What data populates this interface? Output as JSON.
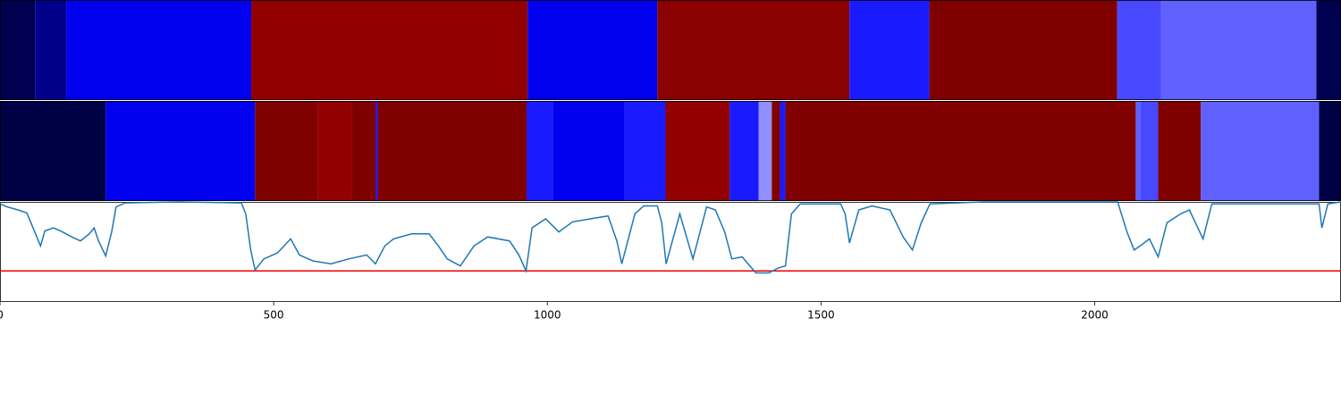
{
  "chart_data": {
    "type": "segmentation",
    "xlim": [
      0,
      2450
    ],
    "xticks": [
      0,
      500,
      1000,
      1500,
      2000
    ],
    "tracks": [
      {
        "segments": [
          {
            "start": 0,
            "end": 64,
            "color": "#000050"
          },
          {
            "start": 64,
            "end": 121,
            "color": "#00008b"
          },
          {
            "start": 121,
            "end": 459,
            "color": "#0000ee"
          },
          {
            "start": 459,
            "end": 964,
            "color": "#920000"
          },
          {
            "start": 964,
            "end": 1201,
            "color": "#0000ee"
          },
          {
            "start": 1201,
            "end": 1552,
            "color": "#8b0000"
          },
          {
            "start": 1552,
            "end": 1698,
            "color": "#1a1aff"
          },
          {
            "start": 1698,
            "end": 2041,
            "color": "#800000"
          },
          {
            "start": 2041,
            "end": 2121,
            "color": "#4848ff"
          },
          {
            "start": 2121,
            "end": 2405,
            "color": "#6060ff"
          },
          {
            "start": 2405,
            "end": 2450,
            "color": "#000050"
          }
        ]
      },
      {
        "segments": [
          {
            "start": 0,
            "end": 193,
            "color": "#000045"
          },
          {
            "start": 193,
            "end": 466,
            "color": "#0000ee"
          },
          {
            "start": 466,
            "end": 580,
            "color": "#800000"
          },
          {
            "start": 580,
            "end": 642,
            "color": "#930000"
          },
          {
            "start": 642,
            "end": 686,
            "color": "#800000"
          },
          {
            "start": 686,
            "end": 690,
            "color": "#1a1aff"
          },
          {
            "start": 690,
            "end": 962,
            "color": "#800000"
          },
          {
            "start": 962,
            "end": 1010,
            "color": "#1a1aff"
          },
          {
            "start": 1010,
            "end": 1141,
            "color": "#0000ee"
          },
          {
            "start": 1141,
            "end": 1216,
            "color": "#1a1aff"
          },
          {
            "start": 1216,
            "end": 1333,
            "color": "#930000"
          },
          {
            "start": 1333,
            "end": 1386,
            "color": "#1a1aff"
          },
          {
            "start": 1386,
            "end": 1410,
            "color": "#9090ff"
          },
          {
            "start": 1410,
            "end": 1425,
            "color": "#800000"
          },
          {
            "start": 1425,
            "end": 1435,
            "color": "#1a1aff"
          },
          {
            "start": 1435,
            "end": 2075,
            "color": "#800000"
          },
          {
            "start": 2075,
            "end": 2083,
            "color": "#6060ff"
          },
          {
            "start": 2083,
            "end": 2116,
            "color": "#4848ff"
          },
          {
            "start": 2116,
            "end": 2194,
            "color": "#800000"
          },
          {
            "start": 2194,
            "end": 2410,
            "color": "#6060ff"
          },
          {
            "start": 2410,
            "end": 2450,
            "color": "#000045"
          }
        ]
      }
    ],
    "line": {
      "color": "#1f77b4",
      "ylim": [
        0,
        1
      ],
      "threshold": 0.31,
      "threshold_color": "#ee0000",
      "x": [
        0,
        13,
        33,
        49,
        65,
        74,
        82,
        98,
        114,
        131,
        147,
        163,
        172,
        180,
        193,
        204,
        212,
        229,
        327,
        441,
        449,
        458,
        466,
        482,
        507,
        531,
        547,
        572,
        605,
        637,
        670,
        686,
        703,
        719,
        752,
        784,
        801,
        817,
        841,
        866,
        891,
        931,
        948,
        961,
        972,
        997,
        1021,
        1046,
        1078,
        1111,
        1127,
        1136,
        1160,
        1176,
        1201,
        1209,
        1217,
        1242,
        1266,
        1291,
        1307,
        1324,
        1337,
        1356,
        1381,
        1405,
        1422,
        1435,
        1446,
        1462,
        1536,
        1544,
        1552,
        1569,
        1593,
        1626,
        1650,
        1667,
        1683,
        1699,
        1797,
        2042,
        2059,
        2072,
        2083,
        2100,
        2116,
        2132,
        2157,
        2173,
        2198,
        2214,
        2410,
        2415,
        2426,
        2450
      ],
      "y": [
        0.98,
        0.95,
        0.92,
        0.89,
        0.68,
        0.56,
        0.71,
        0.74,
        0.7,
        0.65,
        0.61,
        0.68,
        0.74,
        0.61,
        0.46,
        0.7,
        0.95,
        0.99,
        1.0,
        0.99,
        0.88,
        0.52,
        0.32,
        0.43,
        0.49,
        0.63,
        0.47,
        0.41,
        0.38,
        0.43,
        0.47,
        0.38,
        0.56,
        0.63,
        0.68,
        0.68,
        0.56,
        0.43,
        0.36,
        0.56,
        0.65,
        0.61,
        0.47,
        0.31,
        0.74,
        0.83,
        0.7,
        0.8,
        0.83,
        0.86,
        0.61,
        0.38,
        0.88,
        0.96,
        0.96,
        0.79,
        0.38,
        0.88,
        0.43,
        0.95,
        0.92,
        0.7,
        0.43,
        0.45,
        0.29,
        0.29,
        0.34,
        0.36,
        0.88,
        0.98,
        0.98,
        0.88,
        0.59,
        0.92,
        0.96,
        0.92,
        0.65,
        0.52,
        0.79,
        0.98,
        1.0,
        1.0,
        0.7,
        0.52,
        0.56,
        0.63,
        0.45,
        0.79,
        0.88,
        0.92,
        0.63,
        0.98,
        0.98,
        0.74,
        0.98,
        1.0
      ]
    }
  }
}
